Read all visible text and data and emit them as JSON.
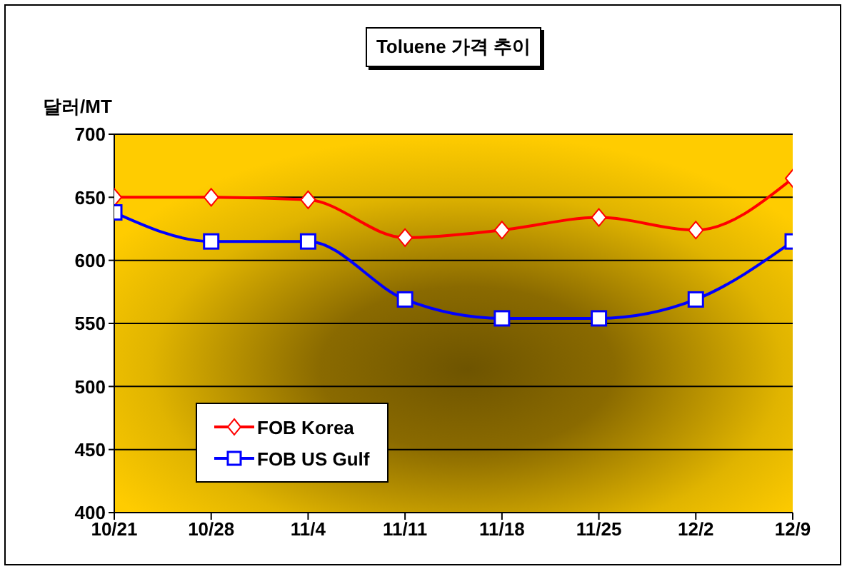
{
  "chart_data": {
    "type": "line",
    "title": "Toluene 가격 추이",
    "ylabel": "달러/MT",
    "categories": [
      "10/21",
      "10/28",
      "11/4",
      "11/11",
      "11/18",
      "11/25",
      "12/2",
      "12/9"
    ],
    "series": [
      {
        "name": "FOB Korea",
        "color": "#ff0000",
        "marker": "diamond",
        "values": [
          650,
          650,
          648,
          618,
          624,
          634,
          624,
          665
        ]
      },
      {
        "name": "FOB US Gulf",
        "color": "#0000ff",
        "marker": "square",
        "values": [
          638,
          615,
          615,
          569,
          554,
          554,
          569,
          615
        ]
      }
    ],
    "ylim": [
      400,
      700
    ],
    "yticks": [
      400,
      450,
      500,
      550,
      600,
      650,
      700
    ],
    "grid": "y",
    "legend": "bottom left"
  }
}
